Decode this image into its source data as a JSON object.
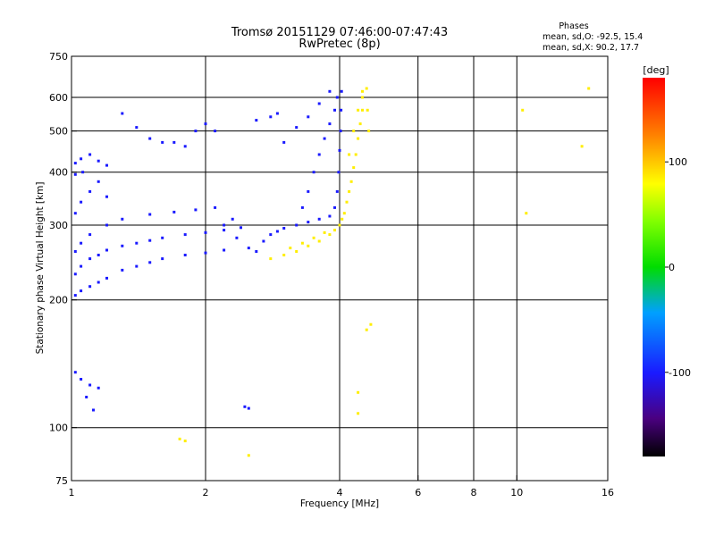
{
  "chart_data": {
    "type": "scatter",
    "title": "Tromsø 20151129 07:46:00-07:47:43",
    "subtitle": "RwPretec (8p)",
    "xlabel": "Frequency [MHz]",
    "ylabel": "Stationary phase Virtual Height [km]",
    "x_scale": "log",
    "y_scale": "log",
    "xlim": [
      1,
      16
    ],
    "ylim": [
      75,
      750
    ],
    "x_ticks": [
      1,
      2,
      4,
      6,
      8,
      10,
      16
    ],
    "x_tick_labels": [
      "1",
      "2",
      "4",
      "6",
      "8",
      "10",
      "16"
    ],
    "x_grid": [
      2,
      4,
      6,
      8,
      10
    ],
    "y_ticks": [
      75,
      100,
      200,
      300,
      400,
      500,
      600,
      750
    ],
    "y_tick_labels": [
      "75",
      "100",
      "200",
      "300",
      "400",
      "500",
      "600",
      "750"
    ],
    "y_grid": [
      100,
      200,
      300,
      400,
      500,
      600
    ],
    "grid": true,
    "phase_info": {
      "heading": "Phases",
      "line1": "mean, sd,O: -92.5, 15.4",
      "line2": "mean, sd,X:  90.2, 17.7"
    },
    "colorbar": {
      "label": "[deg]",
      "range": [
        -180,
        180
      ],
      "ticks": [
        100,
        0,
        -100
      ],
      "tick_labels": [
        "100",
        "0",
        "-100"
      ]
    },
    "series": [
      {
        "name": "O",
        "points": [
          [
            1.02,
            205
          ],
          [
            1.05,
            210
          ],
          [
            1.1,
            215
          ],
          [
            1.15,
            220
          ],
          [
            1.2,
            225
          ],
          [
            1.3,
            235
          ],
          [
            1.4,
            240
          ],
          [
            1.5,
            245
          ],
          [
            1.6,
            250
          ],
          [
            1.8,
            255
          ],
          [
            2.0,
            258
          ],
          [
            2.2,
            262
          ],
          [
            2.5,
            265
          ],
          [
            1.02,
            230
          ],
          [
            1.05,
            240
          ],
          [
            1.1,
            250
          ],
          [
            1.15,
            255
          ],
          [
            1.2,
            262
          ],
          [
            1.3,
            268
          ],
          [
            1.4,
            272
          ],
          [
            1.5,
            276
          ],
          [
            1.6,
            280
          ],
          [
            1.8,
            285
          ],
          [
            2.0,
            288
          ],
          [
            2.2,
            292
          ],
          [
            2.4,
            296
          ],
          [
            1.02,
            260
          ],
          [
            1.05,
            272
          ],
          [
            1.1,
            285
          ],
          [
            1.2,
            300
          ],
          [
            1.3,
            310
          ],
          [
            1.5,
            318
          ],
          [
            1.7,
            322
          ],
          [
            1.9,
            326
          ],
          [
            2.1,
            330
          ],
          [
            1.02,
            320
          ],
          [
            1.05,
            340
          ],
          [
            1.1,
            360
          ],
          [
            1.15,
            380
          ],
          [
            1.2,
            350
          ],
          [
            1.02,
            420
          ],
          [
            1.05,
            430
          ],
          [
            1.1,
            440
          ],
          [
            1.15,
            425
          ],
          [
            1.2,
            415
          ],
          [
            1.02,
            395
          ],
          [
            1.06,
            400
          ],
          [
            1.02,
            135
          ],
          [
            1.05,
            130
          ],
          [
            1.1,
            126
          ],
          [
            1.15,
            124
          ],
          [
            1.08,
            118
          ],
          [
            1.12,
            110
          ],
          [
            2.6,
            260
          ],
          [
            2.7,
            275
          ],
          [
            2.8,
            285
          ],
          [
            2.9,
            290
          ],
          [
            3.0,
            295
          ],
          [
            3.2,
            300
          ],
          [
            3.4,
            305
          ],
          [
            3.6,
            310
          ],
          [
            3.8,
            315
          ],
          [
            3.9,
            330
          ],
          [
            3.95,
            360
          ],
          [
            3.98,
            400
          ],
          [
            4.0,
            450
          ],
          [
            4.02,
            500
          ],
          [
            4.03,
            560
          ],
          [
            4.04,
            620
          ],
          [
            3.3,
            330
          ],
          [
            3.4,
            360
          ],
          [
            3.5,
            400
          ],
          [
            3.6,
            440
          ],
          [
            3.7,
            480
          ],
          [
            3.8,
            520
          ],
          [
            3.9,
            560
          ],
          [
            3.95,
            600
          ],
          [
            3.0,
            470
          ],
          [
            3.2,
            510
          ],
          [
            3.4,
            540
          ],
          [
            3.6,
            580
          ],
          [
            3.8,
            620
          ],
          [
            2.6,
            530
          ],
          [
            2.8,
            540
          ],
          [
            2.9,
            550
          ],
          [
            1.5,
            480
          ],
          [
            1.6,
            470
          ],
          [
            1.7,
            470
          ],
          [
            1.8,
            460
          ],
          [
            1.9,
            500
          ],
          [
            1.4,
            510
          ],
          [
            1.3,
            550
          ],
          [
            2.0,
            520
          ],
          [
            2.1,
            500
          ],
          [
            2.2,
            300
          ],
          [
            2.3,
            310
          ],
          [
            2.35,
            280
          ],
          [
            2.45,
            112
          ],
          [
            2.5,
            111
          ]
        ]
      },
      {
        "name": "X",
        "points": [
          [
            2.8,
            250
          ],
          [
            3.0,
            255
          ],
          [
            3.2,
            260
          ],
          [
            3.4,
            268
          ],
          [
            3.6,
            275
          ],
          [
            3.8,
            285
          ],
          [
            3.9,
            292
          ],
          [
            4.0,
            300
          ],
          [
            4.05,
            310
          ],
          [
            4.1,
            320
          ],
          [
            4.15,
            340
          ],
          [
            4.2,
            360
          ],
          [
            4.25,
            380
          ],
          [
            4.3,
            410
          ],
          [
            4.35,
            440
          ],
          [
            4.4,
            480
          ],
          [
            4.45,
            520
          ],
          [
            4.5,
            560
          ],
          [
            4.5,
            600
          ],
          [
            3.1,
            265
          ],
          [
            3.3,
            272
          ],
          [
            3.5,
            280
          ],
          [
            3.7,
            288
          ],
          [
            4.2,
            440
          ],
          [
            4.3,
            500
          ],
          [
            4.4,
            560
          ],
          [
            4.5,
            620
          ],
          [
            4.6,
            630
          ],
          [
            4.62,
            560
          ],
          [
            4.65,
            500
          ],
          [
            1.75,
            94
          ],
          [
            1.8,
            93
          ],
          [
            2.5,
            86
          ],
          [
            4.4,
            121
          ],
          [
            4.4,
            108
          ],
          [
            4.6,
            170
          ],
          [
            4.7,
            175
          ],
          [
            10.3,
            560
          ],
          [
            10.5,
            320
          ],
          [
            14.5,
            630
          ],
          [
            14.0,
            460
          ]
        ]
      }
    ]
  }
}
